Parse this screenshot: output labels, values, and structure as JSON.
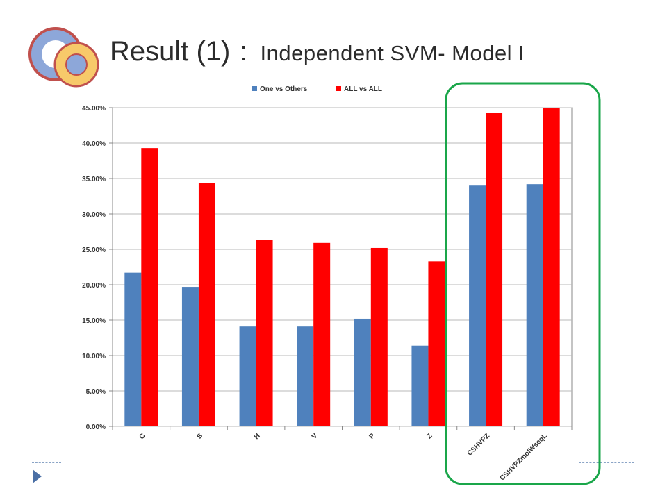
{
  "slide": {
    "title_main": "Result (1)",
    "title_sep": ":",
    "title_sub": "Independent SVM- Model I"
  },
  "chart_data": {
    "type": "bar",
    "title": "",
    "xlabel": "",
    "ylabel": "",
    "categories": [
      "C",
      "S",
      "H",
      "V",
      "P",
      "Z",
      "CSHVPZ",
      "CSHVPZmolWseqL"
    ],
    "series": [
      {
        "name": "One vs Others",
        "color": "#4f81bd",
        "values": [
          21.7,
          19.7,
          14.1,
          14.1,
          15.2,
          11.4,
          34.0,
          34.2
        ]
      },
      {
        "name": "ALL vs ALL",
        "color": "#ff0000",
        "values": [
          39.3,
          34.4,
          26.3,
          25.9,
          25.2,
          23.3,
          44.3,
          44.9
        ]
      }
    ],
    "ylim": [
      0,
      45
    ],
    "ytick_labels": [
      "0.00%",
      "5.00%",
      "10.00%",
      "15.00%",
      "20.00%",
      "25.00%",
      "30.00%",
      "35.00%",
      "40.00%",
      "45.00%"
    ],
    "grid": true,
    "legend": "top-center",
    "highlight_color": "#1aa64a",
    "highlight_categories": [
      "CSHVPZ",
      "CSHVPZmolWseqL"
    ]
  }
}
